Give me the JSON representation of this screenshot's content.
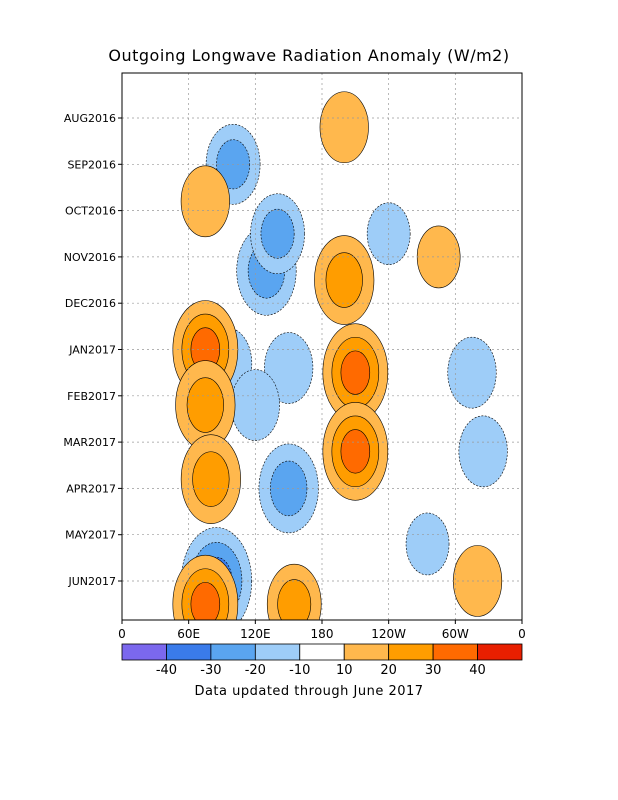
{
  "chart_data": {
    "type": "heatmap",
    "title": "Outgoing Longwave Radiation Anomaly (W/m2)",
    "footer": "Data updated through June 2017",
    "x_axis": {
      "ticks": [
        "0",
        "60E",
        "120E",
        "180",
        "120W",
        "60W",
        "0"
      ],
      "range_deg_east": [
        0,
        360
      ]
    },
    "y_axis": {
      "ticks": [
        "AUG2016",
        "SEP2016",
        "OCT2016",
        "NOV2016",
        "DEC2016",
        "JAN2017",
        "FEB2017",
        "MAR2017",
        "APR2017",
        "MAY2017",
        "JUN2017"
      ],
      "orientation": "time increases downward",
      "grid": "dotted"
    },
    "colorbar": {
      "labels": [
        "-40",
        "-30",
        "-20",
        "-10",
        "10",
        "20",
        "30",
        "40"
      ],
      "colors": [
        "#7b68ee",
        "#3a7bea",
        "#5aa5f0",
        "#9ecdf8",
        "#ffffff",
        "#ffb84d",
        "#ff9d00",
        "#ff6a00",
        "#e81f00"
      ]
    },
    "anomaly_regions": [
      {
        "lon": 130,
        "month_index": 3.3,
        "value": -25
      },
      {
        "lon": 140,
        "month_index": 2.5,
        "value": -20
      },
      {
        "lon": 100,
        "month_index": 1.0,
        "value": -20
      },
      {
        "lon": 95,
        "month_index": 5.3,
        "value": -15
      },
      {
        "lon": 150,
        "month_index": 5.4,
        "value": -15
      },
      {
        "lon": 120,
        "month_index": 6.2,
        "value": -15
      },
      {
        "lon": 150,
        "month_index": 8.0,
        "value": -25
      },
      {
        "lon": 85,
        "month_index": 10.0,
        "value": -35
      },
      {
        "lon": 200,
        "month_index": 3.5,
        "value": 25
      },
      {
        "lon": 210,
        "month_index": 5.5,
        "value": 30
      },
      {
        "lon": 210,
        "month_index": 7.2,
        "value": 30
      },
      {
        "lon": 200,
        "month_index": 0.2,
        "value": 15
      },
      {
        "lon": 75,
        "month_index": 5.0,
        "value": 30
      },
      {
        "lon": 75,
        "month_index": 6.2,
        "value": 25
      },
      {
        "lon": 80,
        "month_index": 7.8,
        "value": 25
      },
      {
        "lon": 75,
        "month_index": 1.8,
        "value": 15
      },
      {
        "lon": 75,
        "month_index": 10.5,
        "value": 30
      },
      {
        "lon": 155,
        "month_index": 10.5,
        "value": 20
      },
      {
        "lon": 315,
        "month_index": 5.5,
        "value": -15
      },
      {
        "lon": 325,
        "month_index": 7.2,
        "value": -15
      },
      {
        "lon": 320,
        "month_index": 10.0,
        "value": 15
      },
      {
        "lon": 275,
        "month_index": 9.2,
        "value": -10
      },
      {
        "lon": 285,
        "month_index": 3.0,
        "value": 10
      },
      {
        "lon": 240,
        "month_index": 2.5,
        "value": -10
      }
    ]
  }
}
